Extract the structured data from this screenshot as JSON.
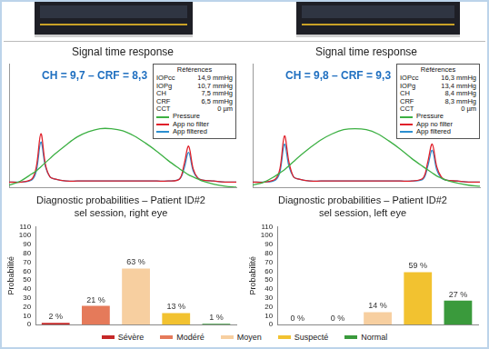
{
  "chart_data": [
    {
      "type": "line",
      "title": "Signal time response",
      "annotations": [
        "CH = 9,7 – CRF = 8,3"
      ],
      "references": {
        "title": "Références",
        "rows": [
          {
            "label": "IOPcc",
            "value": "14,9 mmHg"
          },
          {
            "label": "IOPg",
            "value": "10,7 mmHg"
          },
          {
            "label": "CH",
            "value": "7,5 mmHg"
          },
          {
            "label": "CRF",
            "value": "6,5 mmHg"
          },
          {
            "label": "CCT",
            "value": "0 µm"
          }
        ]
      },
      "x": [
        0,
        5,
        10,
        12,
        14,
        16,
        18,
        20,
        25,
        30,
        35,
        40,
        45,
        50,
        55,
        60,
        65,
        70,
        75,
        77,
        79,
        81,
        83,
        85,
        90,
        95,
        100
      ],
      "series": [
        {
          "name": "Pressure",
          "color": "#3cb043",
          "values": [
            2,
            6,
            13,
            16,
            20,
            24,
            28,
            32,
            41,
            49,
            54,
            57,
            57,
            55,
            50,
            43,
            35,
            26,
            18,
            15,
            12,
            10,
            8,
            6,
            3,
            1,
            0
          ]
        },
        {
          "name": "App no filter",
          "color": "#e0202a",
          "values": [
            5,
            5,
            8,
            20,
            52,
            22,
            10,
            8,
            6,
            6,
            6,
            6,
            6,
            6,
            6,
            6,
            6,
            6,
            8,
            22,
            40,
            18,
            9,
            7,
            6,
            5,
            5
          ]
        },
        {
          "name": "App filtered",
          "color": "#2b8fd0",
          "values": [
            5,
            5,
            7,
            16,
            44,
            20,
            10,
            8,
            6,
            6,
            6,
            6,
            6,
            6,
            6,
            6,
            6,
            6,
            8,
            18,
            34,
            16,
            9,
            7,
            6,
            5,
            5
          ]
        }
      ],
      "xlim": [
        0,
        100
      ],
      "ylim": [
        0,
        120
      ],
      "grid": false,
      "tick_labels": false,
      "legend": "top-right"
    },
    {
      "type": "line",
      "title": "Signal time response",
      "annotations": [
        "CH = 9,8 – CRF = 9,3"
      ],
      "references": {
        "title": "Références",
        "rows": [
          {
            "label": "IOPcc",
            "value": "16,3 mmHg"
          },
          {
            "label": "IOPg",
            "value": "13,4 mmHg"
          },
          {
            "label": "CH",
            "value": "8,4 mmHg"
          },
          {
            "label": "CRF",
            "value": "8,3 mmHg"
          },
          {
            "label": "CCT",
            "value": "0 µm"
          }
        ]
      },
      "x": [
        0,
        5,
        10,
        12,
        14,
        16,
        18,
        20,
        25,
        30,
        35,
        40,
        45,
        50,
        55,
        60,
        65,
        70,
        75,
        77,
        79,
        81,
        83,
        85,
        90,
        95,
        100
      ],
      "series": [
        {
          "name": "Pressure",
          "color": "#3cb043",
          "values": [
            2,
            5,
            11,
            14,
            17,
            21,
            25,
            29,
            38,
            46,
            52,
            56,
            57,
            56,
            52,
            45,
            37,
            28,
            20,
            17,
            14,
            11,
            9,
            7,
            4,
            2,
            1
          ]
        },
        {
          "name": "App no filter",
          "color": "#e0202a",
          "values": [
            5,
            5,
            8,
            18,
            50,
            24,
            10,
            8,
            6,
            6,
            6,
            6,
            6,
            6,
            6,
            6,
            6,
            6,
            9,
            24,
            42,
            20,
            10,
            7,
            6,
            5,
            5
          ]
        },
        {
          "name": "App filtered",
          "color": "#2b8fd0",
          "values": [
            5,
            5,
            7,
            15,
            42,
            20,
            10,
            8,
            6,
            6,
            6,
            6,
            6,
            6,
            6,
            6,
            6,
            6,
            8,
            20,
            36,
            17,
            9,
            7,
            6,
            5,
            5
          ]
        }
      ],
      "xlim": [
        0,
        100
      ],
      "ylim": [
        0,
        120
      ],
      "grid": false,
      "tick_labels": false,
      "legend": "top-right"
    },
    {
      "type": "bar",
      "title": "Diagnostic probabilities – Patient ID#2",
      "subtitle": "sel session, right eye",
      "y_label": "Probabilité",
      "categories": [
        "Sévère",
        "Modéré",
        "Moyen",
        "Suspecté",
        "Normal"
      ],
      "values": [
        2,
        21,
        63,
        13,
        1
      ],
      "value_labels": [
        "2 %",
        "21 %",
        "63 %",
        "13 %",
        "1 %"
      ],
      "colors": [
        "#c62828",
        "#e57a5a",
        "#f7cfa0",
        "#f2c230",
        "#3a9a3c"
      ],
      "ylim": [
        0,
        110
      ],
      "yticks": [
        0,
        10,
        20,
        30,
        40,
        50,
        60,
        70,
        80,
        90,
        100,
        110
      ],
      "grid": false,
      "data_labels": true,
      "tick_labels": "y"
    },
    {
      "type": "bar",
      "title": "Diagnostic probabilities – Patient ID#2",
      "subtitle": "sel session, left eye",
      "y_label": "Probabilité",
      "categories": [
        "Sévère",
        "Modéré",
        "Moyen",
        "Suspecté",
        "Normal"
      ],
      "values": [
        0,
        0,
        14,
        59,
        27
      ],
      "value_labels": [
        "0 %",
        "0 %",
        "14 %",
        "59 %",
        "27 %"
      ],
      "colors": [
        "#c62828",
        "#e57a5a",
        "#f7cfa0",
        "#f2c230",
        "#3a9a3c"
      ],
      "ylim": [
        0,
        110
      ],
      "yticks": [
        0,
        10,
        20,
        30,
        40,
        50,
        60,
        70,
        80,
        90,
        100,
        110
      ],
      "grid": false,
      "data_labels": true,
      "tick_labels": "y",
      "legend": "bottom"
    }
  ]
}
